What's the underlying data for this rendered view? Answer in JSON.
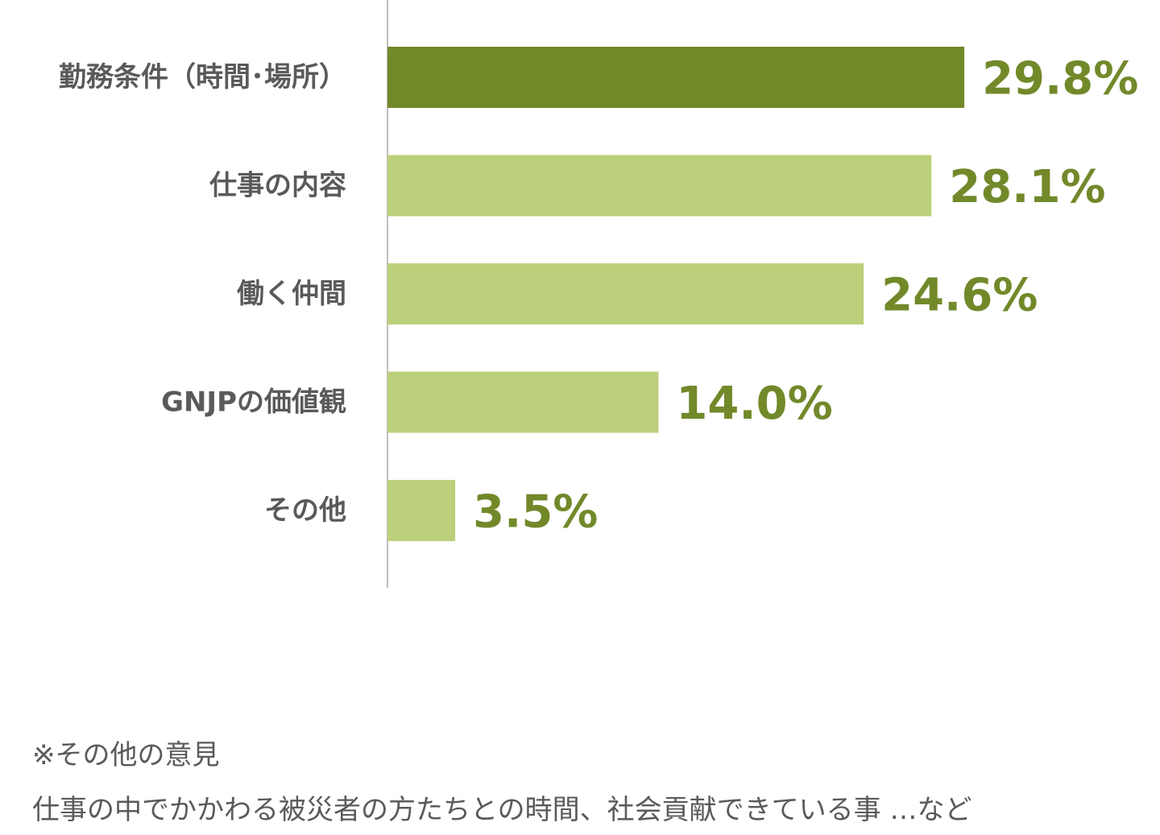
{
  "chart_data": {
    "type": "bar",
    "orientation": "horizontal",
    "categories": [
      "勤務条件（時間･場所）",
      "仕事の内容",
      "働く仲間",
      "GNJPの価値観",
      "その他"
    ],
    "values": [
      29.8,
      28.1,
      24.6,
      14.0,
      3.5
    ],
    "value_labels": [
      "29.8%",
      "28.1%",
      "24.6%",
      "14.0%",
      "3.5%"
    ],
    "title": "",
    "xlabel": "",
    "ylabel": "",
    "xlim": [
      0,
      30
    ],
    "grid": false,
    "legend": "none",
    "highlight_index": 0,
    "colors": {
      "highlight": "#72892a",
      "bar": "#bccf7a",
      "value_text": "#72892a",
      "category_text": "#5a5a5a",
      "axis": "#aaaaaa"
    }
  },
  "note": {
    "heading": "※その他の意見",
    "body": "仕事の中でかかわる被災者の方たちとの時間、社会貢献できている事 …など"
  }
}
